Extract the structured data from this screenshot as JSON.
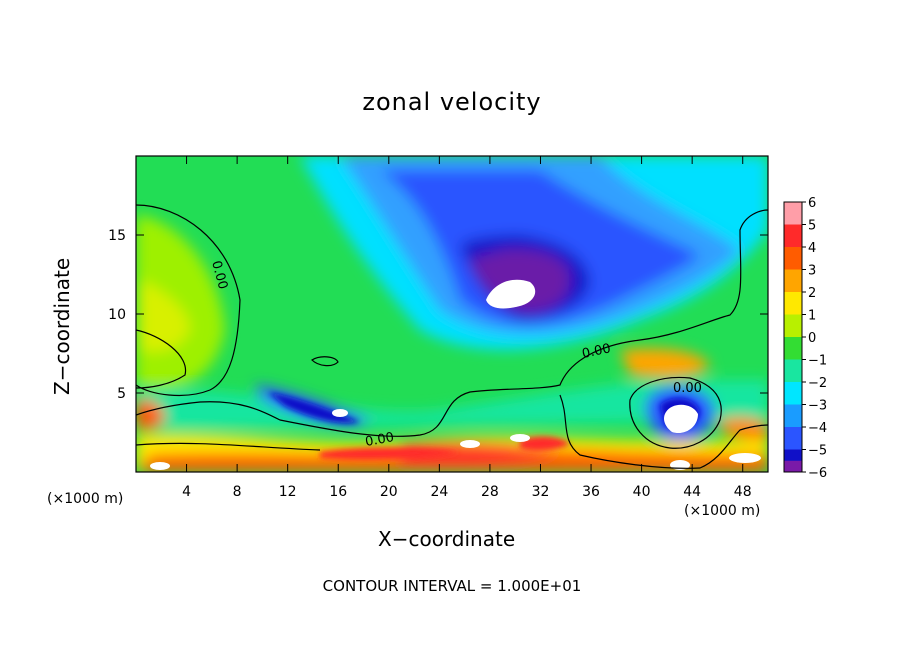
{
  "chart_data": {
    "type": "heatmap",
    "title": "zonal velocity",
    "xlabel": "X−coordinate",
    "ylabel": "Z−coordinate",
    "x_scale_note": "(×1000 m)",
    "y_scale_note": "(×1000 m)",
    "footer": "CONTOUR INTERVAL = 1.000E+01",
    "xlim": [
      0,
      50
    ],
    "ylim": [
      0,
      20
    ],
    "x_ticks": [
      4,
      8,
      12,
      16,
      20,
      24,
      28,
      32,
      36,
      40,
      44,
      48
    ],
    "x_tick_labels": [
      "4",
      "8",
      "12",
      "16",
      "20",
      "24",
      "28",
      "32",
      "36",
      "40",
      "44",
      "48"
    ],
    "y_ticks": [
      5,
      10,
      15
    ],
    "y_tick_labels": [
      "5",
      "10",
      "15"
    ],
    "colorbar": {
      "levels": [
        6,
        5,
        4,
        3,
        2,
        1,
        0,
        -1,
        -2,
        -3,
        -4,
        -5,
        -6
      ],
      "labels": [
        "6",
        "5",
        "4",
        "3",
        "2",
        "1",
        "0",
        "−1",
        "−2",
        "−3",
        "−4",
        "−5",
        "−6"
      ],
      "colors": [
        "#ff9ea8",
        "#ff2a2a",
        "#ff5c00",
        "#ffa500",
        "#ffe800",
        "#b8f000",
        "#33dd33",
        "#19e6a0",
        "#00e6ff",
        "#1a9cff",
        "#2b55ff",
        "#1010c8",
        "#7a1aa8"
      ]
    },
    "contour_labels": [
      "0.00",
      "0.00",
      "0.00",
      "0.00"
    ],
    "features": [
      {
        "x": 30,
        "z": 11,
        "value": -6,
        "note": "strong negative core (upper center)"
      },
      {
        "x": 3,
        "z": 10,
        "value": 1.5,
        "note": "positive region (upper left)"
      },
      {
        "x": 43,
        "z": 3.5,
        "value": -5,
        "note": "negative eddy (lower right)"
      }
    ]
  }
}
